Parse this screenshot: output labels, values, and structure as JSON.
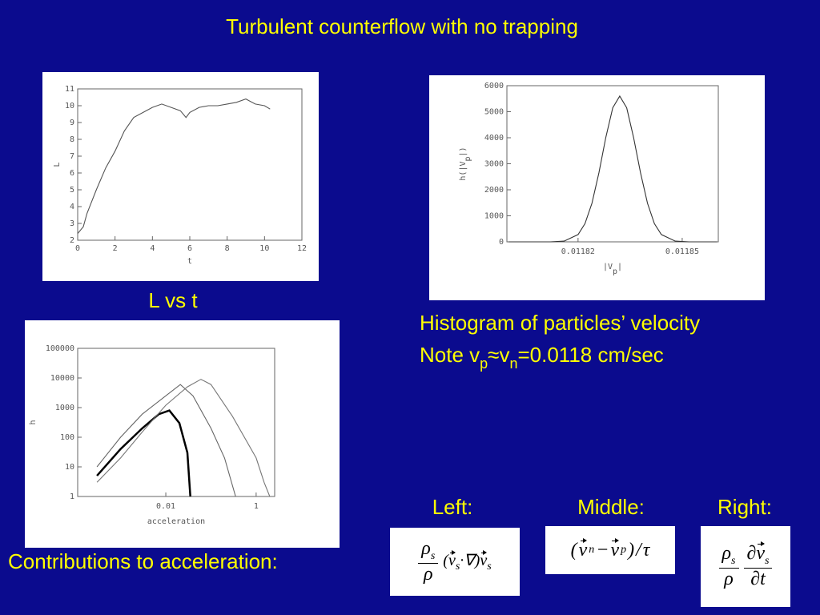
{
  "title": "Turbulent counterflow with no trapping",
  "captions": {
    "l_vs_t": "L vs t",
    "histogram": {
      "line1": "Histogram of particles’ velocity",
      "line2": [
        "Note v",
        "p",
        "≈v",
        "n",
        "=0.0118 cm/sec"
      ]
    },
    "contributions": "Contributions to acceleration:"
  },
  "labels": {
    "left": "Left:",
    "middle": "Middle:",
    "right": "Right:"
  },
  "formulas": {
    "left": {
      "num": [
        "ρ",
        "s"
      ],
      "den": "ρ",
      "expr": [
        "(",
        "v",
        "s",
        "·∇)",
        "v",
        "s"
      ]
    },
    "middle": {
      "expr": [
        "(",
        "v",
        "n",
        "−",
        "v",
        "p",
        ")",
        "/",
        "τ"
      ]
    },
    "right": {
      "num1": [
        "ρ",
        "s"
      ],
      "den1": "ρ",
      "num2": [
        "∂",
        "v",
        "s"
      ],
      "den2": "∂t"
    }
  },
  "chart_data": [
    {
      "type": "line",
      "x_label": [
        "t"
      ],
      "y_label": [
        "L"
      ],
      "color": "#555555",
      "x": [
        0,
        0.3,
        0.5,
        1,
        1.5,
        2,
        2.5,
        3,
        3.5,
        4,
        4.5,
        5,
        5.5,
        5.8,
        6,
        6.5,
        7,
        7.5,
        8,
        8.5,
        9,
        9.5,
        10,
        10.3
      ],
      "values": [
        2.4,
        2.8,
        3.6,
        5,
        6.3,
        7.3,
        8.5,
        9.3,
        9.6,
        9.9,
        10.1,
        9.9,
        9.7,
        9.3,
        9.6,
        9.9,
        10.0,
        10.0,
        10.1,
        10.2,
        10.4,
        10.1,
        10.0,
        9.8
      ],
      "xlim": [
        0,
        12
      ],
      "xticks": [
        0,
        2,
        4,
        6,
        8,
        10,
        12
      ],
      "ylim": [
        2,
        11
      ],
      "yticks": [
        2,
        3,
        4,
        5,
        6,
        7,
        8,
        9,
        10,
        11
      ]
    },
    {
      "type": "line",
      "x_label": [
        "|V",
        "p",
        "|"
      ],
      "y_label": [
        "h(|V",
        "p",
        "|)"
      ],
      "color": "#333333",
      "x": [
        0.0118,
        0.011804,
        0.011808,
        0.011812,
        0.011816,
        0.01182,
        0.011822,
        0.011824,
        0.011826,
        0.011828,
        0.01183,
        0.011832,
        0.011834,
        0.011836,
        0.011838,
        0.01184,
        0.011842,
        0.011844,
        0.011848,
        0.011852,
        0.011856,
        0.01186
      ],
      "values": [
        0,
        0,
        0,
        1,
        27,
        280,
        700,
        1480,
        2650,
        4010,
        5150,
        5600,
        5150,
        4010,
        2650,
        1480,
        700,
        280,
        27,
        1,
        0,
        0
      ],
      "xlim": [
        0.0117995,
        0.0118604
      ],
      "xticks": [
        0.01182,
        0.01185
      ],
      "ylim": [
        0,
        6000
      ],
      "yticks": [
        0,
        1000,
        2000,
        3000,
        4000,
        5000,
        6000
      ]
    },
    {
      "type": "line",
      "log_x": true,
      "log_y": true,
      "x_label": [
        "acceleration"
      ],
      "y_label": [
        "h"
      ],
      "series": [
        {
          "color": "#000000",
          "x": [
            0.0003,
            0.001,
            0.003,
            0.007,
            0.012,
            0.02,
            0.03,
            0.035
          ],
          "values": [
            5,
            40,
            200,
            600,
            800,
            300,
            30,
            1
          ]
        },
        {
          "color": "#666666",
          "x": [
            0.0003,
            0.001,
            0.003,
            0.01,
            0.021,
            0.04,
            0.1,
            0.2,
            0.35
          ],
          "values": [
            10,
            100,
            600,
            2500,
            6000,
            2500,
            200,
            20,
            1
          ]
        },
        {
          "color": "#777777",
          "x": [
            0.0003,
            0.001,
            0.003,
            0.01,
            0.03,
            0.06,
            0.1,
            0.3,
            1,
            1.5,
            2
          ],
          "values": [
            3,
            20,
            150,
            1200,
            5000,
            9000,
            6000,
            500,
            20,
            3,
            1
          ]
        }
      ],
      "xlim": [
        0.000112,
        2.57
      ],
      "xticks": [
        0.01,
        1
      ],
      "ylim": [
        1,
        100000
      ],
      "yticks": [
        1,
        10,
        100,
        1000,
        10000,
        100000
      ]
    }
  ]
}
